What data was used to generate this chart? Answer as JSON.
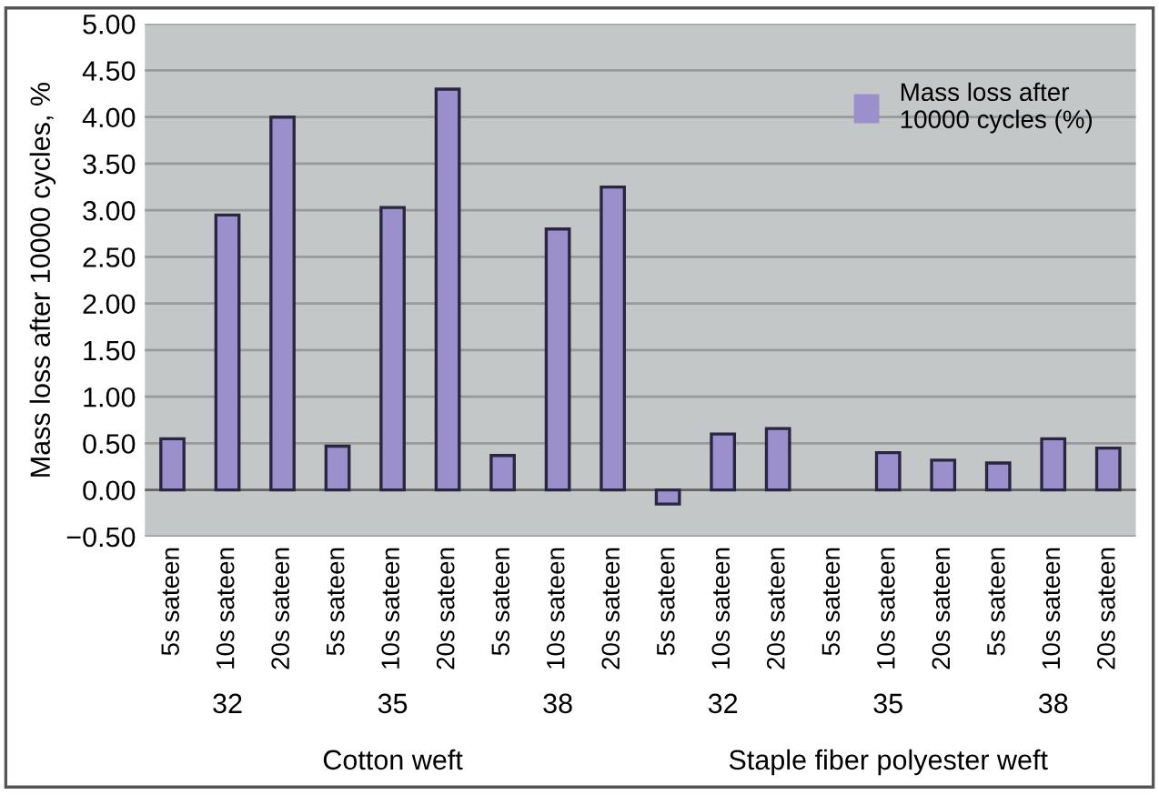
{
  "chart_data": {
    "type": "bar",
    "ylabel": "Mass loss after 10000 cycles, %",
    "categories": [
      "5s sateen",
      "10s sateen",
      "20s sateen",
      "5s sateen",
      "10s sateen",
      "20s sateen",
      "5s sateen",
      "10s sateen",
      "20s sateen",
      "5s sateen",
      "10s sateen",
      "20s sateen",
      "5s sateen",
      "10s sateen",
      "20s sateen",
      "5s sateen",
      "10s sateen",
      "20s sateen"
    ],
    "series": [
      {
        "name": "Mass loss after\n10000 cycles (%)",
        "color": "#9b8fcc",
        "values": [
          0.55,
          2.95,
          4.0,
          0.47,
          3.03,
          4.3,
          0.37,
          2.8,
          3.25,
          -0.15,
          0.6,
          0.66,
          null,
          0.4,
          0.32,
          0.29,
          0.55,
          0.45
        ]
      }
    ],
    "annotations": [
      "32",
      "35",
      "38",
      "32",
      "35",
      "38",
      "Cotton weft",
      "Staple fiber polyester weft"
    ],
    "ylim": [
      -0.5,
      5.0
    ],
    "yticks": [
      {
        "value": -0.5,
        "label": "−0.50"
      },
      {
        "value": 0.0,
        "label": "0.00"
      },
      {
        "value": 0.5,
        "label": "0.50"
      },
      {
        "value": 1.0,
        "label": "1.00"
      },
      {
        "value": 1.5,
        "label": "1.50"
      },
      {
        "value": 2.0,
        "label": "2.00"
      },
      {
        "value": 2.5,
        "label": "2.50"
      },
      {
        "value": 3.0,
        "label": "3.00"
      },
      {
        "value": 3.5,
        "label": "3.50"
      },
      {
        "value": 4.0,
        "label": "4.00"
      },
      {
        "value": 4.5,
        "label": "4.50"
      },
      {
        "value": 5.0,
        "label": "5.00"
      }
    ],
    "grid": "y",
    "legend": "top right"
  }
}
